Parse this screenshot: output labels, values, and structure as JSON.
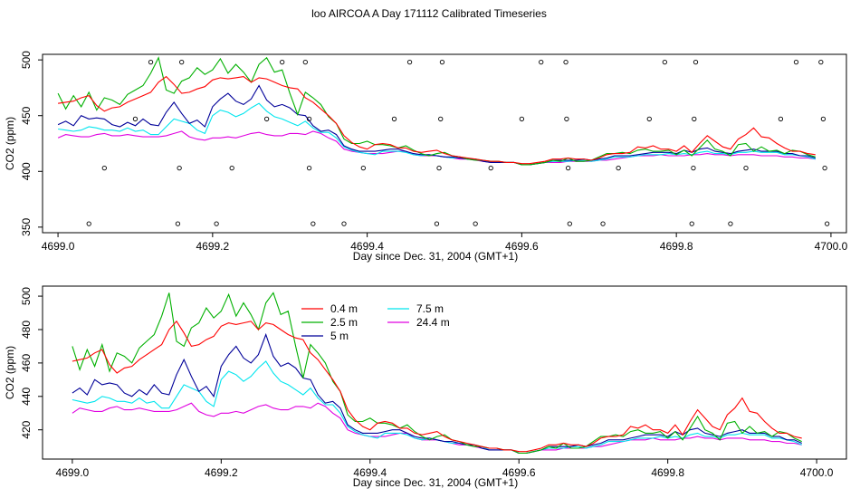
{
  "page_title": "loo AIRCOA A  Day 171112  Calibrated Timeseries",
  "chart_data": [
    {
      "type": "line",
      "xlabel": "Day since Dec. 31, 2004 (GMT+1)",
      "ylabel": "CO2 (ppm)",
      "xlim": [
        4698.98,
        4700.02
      ],
      "ylim": [
        345,
        505
      ],
      "xticks": [
        "4699.0",
        "4699.2",
        "4699.4",
        "4699.6",
        "4699.8",
        "4700.0"
      ],
      "yticks": [
        "350",
        "400",
        "450",
        "500"
      ],
      "colors": [
        "#ff0000",
        "#00b000",
        "#000099",
        "#00e5ee",
        "#e000e0"
      ],
      "x": [
        4699.0,
        4699.01,
        4699.02,
        4699.03,
        4699.04,
        4699.05,
        4699.06,
        4699.07,
        4699.08,
        4699.09,
        4699.1,
        4699.11,
        4699.12,
        4699.13,
        4699.14,
        4699.15,
        4699.16,
        4699.17,
        4699.18,
        4699.19,
        4699.2,
        4699.21,
        4699.22,
        4699.23,
        4699.24,
        4699.25,
        4699.26,
        4699.27,
        4699.28,
        4699.29,
        4699.3,
        4699.31,
        4699.32,
        4699.33,
        4699.34,
        4699.35,
        4699.36,
        4699.37,
        4699.38,
        4699.39,
        4699.4,
        4699.41,
        4699.42,
        4699.43,
        4699.44,
        4699.45,
        4699.46,
        4699.47,
        4699.48,
        4699.49,
        4699.5,
        4699.51,
        4699.52,
        4699.53,
        4699.54,
        4699.55,
        4699.56,
        4699.57,
        4699.58,
        4699.59,
        4699.6,
        4699.61,
        4699.62,
        4699.63,
        4699.64,
        4699.65,
        4699.66,
        4699.67,
        4699.68,
        4699.69,
        4699.7,
        4699.71,
        4699.72,
        4699.73,
        4699.74,
        4699.75,
        4699.76,
        4699.77,
        4699.78,
        4699.79,
        4699.8,
        4699.81,
        4699.82,
        4699.83,
        4699.84,
        4699.85,
        4699.86,
        4699.87,
        4699.88,
        4699.89,
        4699.9,
        4699.91,
        4699.92,
        4699.93,
        4699.94,
        4699.95,
        4699.96,
        4699.97,
        4699.98
      ],
      "series": [
        {
          "values": [
            461,
            462,
            463,
            466,
            468,
            459,
            454,
            457,
            458,
            462,
            465,
            468,
            471,
            480,
            485,
            478,
            470,
            471,
            474,
            476,
            482,
            484,
            483,
            484,
            485,
            480,
            484,
            483,
            480,
            477,
            475,
            474,
            466,
            462,
            456,
            450,
            443,
            432,
            426,
            422,
            420,
            424,
            425,
            424,
            421,
            421,
            418,
            417,
            418,
            419,
            416,
            414,
            413,
            412,
            411,
            410,
            409,
            409,
            408,
            408,
            407,
            407,
            408,
            409,
            411,
            411,
            412,
            411,
            411,
            410,
            412,
            415,
            416,
            416,
            417,
            422,
            421,
            423,
            420,
            420,
            418,
            423,
            417,
            425,
            432,
            427,
            422,
            420,
            429,
            433,
            439,
            431,
            430,
            425,
            421,
            418,
            418,
            416,
            415
          ]
        },
        {
          "values": [
            470,
            456,
            468,
            458,
            471,
            455,
            466,
            464,
            460,
            469,
            473,
            477,
            488,
            502,
            473,
            470,
            481,
            484,
            493,
            487,
            491,
            501,
            488,
            496,
            489,
            480,
            496,
            502,
            489,
            491,
            470,
            451,
            471,
            466,
            460,
            449,
            443,
            429,
            425,
            425,
            427,
            424,
            424,
            423,
            421,
            423,
            419,
            416,
            414,
            416,
            417,
            414,
            413,
            411,
            410,
            410,
            409,
            409,
            408,
            408,
            406,
            406,
            407,
            408,
            410,
            409,
            412,
            409,
            409,
            410,
            413,
            416,
            416,
            417,
            416,
            419,
            420,
            418,
            418,
            419,
            415,
            419,
            414,
            421,
            428,
            420,
            418,
            414,
            424,
            425,
            418,
            422,
            418,
            419,
            416,
            419,
            418,
            415,
            413
          ]
        },
        {
          "values": [
            442,
            445,
            441,
            450,
            447,
            448,
            447,
            442,
            440,
            444,
            441,
            447,
            442,
            441,
            453,
            462,
            452,
            443,
            446,
            440,
            458,
            465,
            470,
            463,
            460,
            465,
            477,
            464,
            458,
            460,
            457,
            451,
            450,
            441,
            436,
            437,
            433,
            423,
            420,
            418,
            418,
            418,
            419,
            420,
            420,
            418,
            416,
            415,
            415,
            414,
            413,
            413,
            412,
            411,
            411,
            409,
            408,
            408,
            408,
            408,
            406,
            406,
            407,
            408,
            410,
            410,
            410,
            410,
            411,
            410,
            411,
            412,
            414,
            414,
            414,
            415,
            416,
            417,
            417,
            417,
            416,
            419,
            417,
            420,
            421,
            418,
            417,
            416,
            418,
            419,
            420,
            418,
            418,
            418,
            416,
            416,
            414,
            414,
            412
          ]
        },
        {
          "values": [
            438,
            437,
            436,
            437,
            440,
            439,
            437,
            437,
            436,
            439,
            436,
            437,
            433,
            433,
            440,
            447,
            445,
            443,
            437,
            434,
            450,
            455,
            453,
            449,
            452,
            457,
            461,
            454,
            449,
            447,
            444,
            441,
            445,
            439,
            435,
            435,
            430,
            422,
            419,
            417,
            416,
            415,
            418,
            418,
            418,
            417,
            415,
            414,
            415,
            414,
            413,
            412,
            412,
            411,
            411,
            410,
            408,
            408,
            408,
            408,
            406,
            406,
            407,
            408,
            409,
            409,
            409,
            410,
            410,
            409,
            410,
            411,
            413,
            413,
            413,
            414,
            415,
            415,
            415,
            416,
            415,
            416,
            415,
            417,
            418,
            416,
            416,
            415,
            417,
            417,
            418,
            417,
            417,
            417,
            415,
            415,
            414,
            413,
            411
          ]
        },
        {
          "values": [
            430,
            433,
            432,
            431,
            431,
            433,
            434,
            432,
            432,
            433,
            432,
            431,
            431,
            431,
            432,
            434,
            436,
            431,
            429,
            428,
            430,
            430,
            431,
            430,
            432,
            434,
            435,
            433,
            432,
            432,
            434,
            434,
            433,
            436,
            434,
            430,
            427,
            420,
            418,
            417,
            416,
            416,
            416,
            417,
            418,
            418,
            415,
            414,
            414,
            414,
            413,
            412,
            411,
            411,
            410,
            409,
            408,
            408,
            408,
            408,
            406,
            406,
            407,
            408,
            408,
            408,
            409,
            409,
            409,
            409,
            410,
            410,
            411,
            412,
            413,
            414,
            414,
            414,
            415,
            414,
            414,
            414,
            415,
            415,
            416,
            415,
            415,
            414,
            415,
            415,
            415,
            414,
            414,
            414,
            413,
            413,
            412,
            412,
            411
          ]
        }
      ],
      "scatter_points": [
        {
          "x": 4699.04,
          "y": 353
        },
        {
          "x": 4699.06,
          "y": 403
        },
        {
          "x": 4699.1,
          "y": 447
        },
        {
          "x": 4699.12,
          "y": 498
        },
        {
          "x": 4699.155,
          "y": 353
        },
        {
          "x": 4699.157,
          "y": 403
        },
        {
          "x": 4699.16,
          "y": 498
        },
        {
          "x": 4699.205,
          "y": 353
        },
        {
          "x": 4699.225,
          "y": 403
        },
        {
          "x": 4699.27,
          "y": 447
        },
        {
          "x": 4699.29,
          "y": 498
        },
        {
          "x": 4699.32,
          "y": 498
        },
        {
          "x": 4699.325,
          "y": 447
        },
        {
          "x": 4699.325,
          "y": 403
        },
        {
          "x": 4699.33,
          "y": 353
        },
        {
          "x": 4699.37,
          "y": 353
        },
        {
          "x": 4699.395,
          "y": 403
        },
        {
          "x": 4699.435,
          "y": 447
        },
        {
          "x": 4699.455,
          "y": 498
        },
        {
          "x": 4699.49,
          "y": 353
        },
        {
          "x": 4699.493,
          "y": 403
        },
        {
          "x": 4699.495,
          "y": 447
        },
        {
          "x": 4699.497,
          "y": 498
        },
        {
          "x": 4699.54,
          "y": 353
        },
        {
          "x": 4699.56,
          "y": 403
        },
        {
          "x": 4699.6,
          "y": 447
        },
        {
          "x": 4699.625,
          "y": 498
        },
        {
          "x": 4699.657,
          "y": 498
        },
        {
          "x": 4699.658,
          "y": 447
        },
        {
          "x": 4699.66,
          "y": 403
        },
        {
          "x": 4699.662,
          "y": 353
        },
        {
          "x": 4699.705,
          "y": 353
        },
        {
          "x": 4699.725,
          "y": 403
        },
        {
          "x": 4699.765,
          "y": 447
        },
        {
          "x": 4699.785,
          "y": 498
        },
        {
          "x": 4699.82,
          "y": 353
        },
        {
          "x": 4699.822,
          "y": 403
        },
        {
          "x": 4699.823,
          "y": 447
        },
        {
          "x": 4699.825,
          "y": 498
        },
        {
          "x": 4699.87,
          "y": 353
        },
        {
          "x": 4699.89,
          "y": 403
        },
        {
          "x": 4699.935,
          "y": 447
        },
        {
          "x": 4699.955,
          "y": 498
        },
        {
          "x": 4699.987,
          "y": 498
        },
        {
          "x": 4699.99,
          "y": 447
        },
        {
          "x": 4699.992,
          "y": 403
        },
        {
          "x": 4699.995,
          "y": 353
        }
      ]
    },
    {
      "type": "line",
      "xlabel": "Day since Dec. 31, 2004 (GMT+1)",
      "ylabel": "CO2 (ppm)",
      "xlim": [
        4698.96,
        4700.04
      ],
      "ylim": [
        402.5,
        506
      ],
      "xticks": [
        "4699.0",
        "4699.2",
        "4699.4",
        "4699.6",
        "4699.8",
        "4700.0"
      ],
      "yticks": [
        "420",
        "440",
        "460",
        "480",
        "500"
      ],
      "legend": "top-center",
      "colors": [
        "#ff0000",
        "#00b000",
        "#000099",
        "#00e5ee",
        "#e000e0"
      ],
      "series_names": [
        "0.4 m",
        "2.5 m",
        "5 m",
        "7.5 m",
        "24.4 m"
      ],
      "same_series_as_upper_panel": true
    }
  ]
}
